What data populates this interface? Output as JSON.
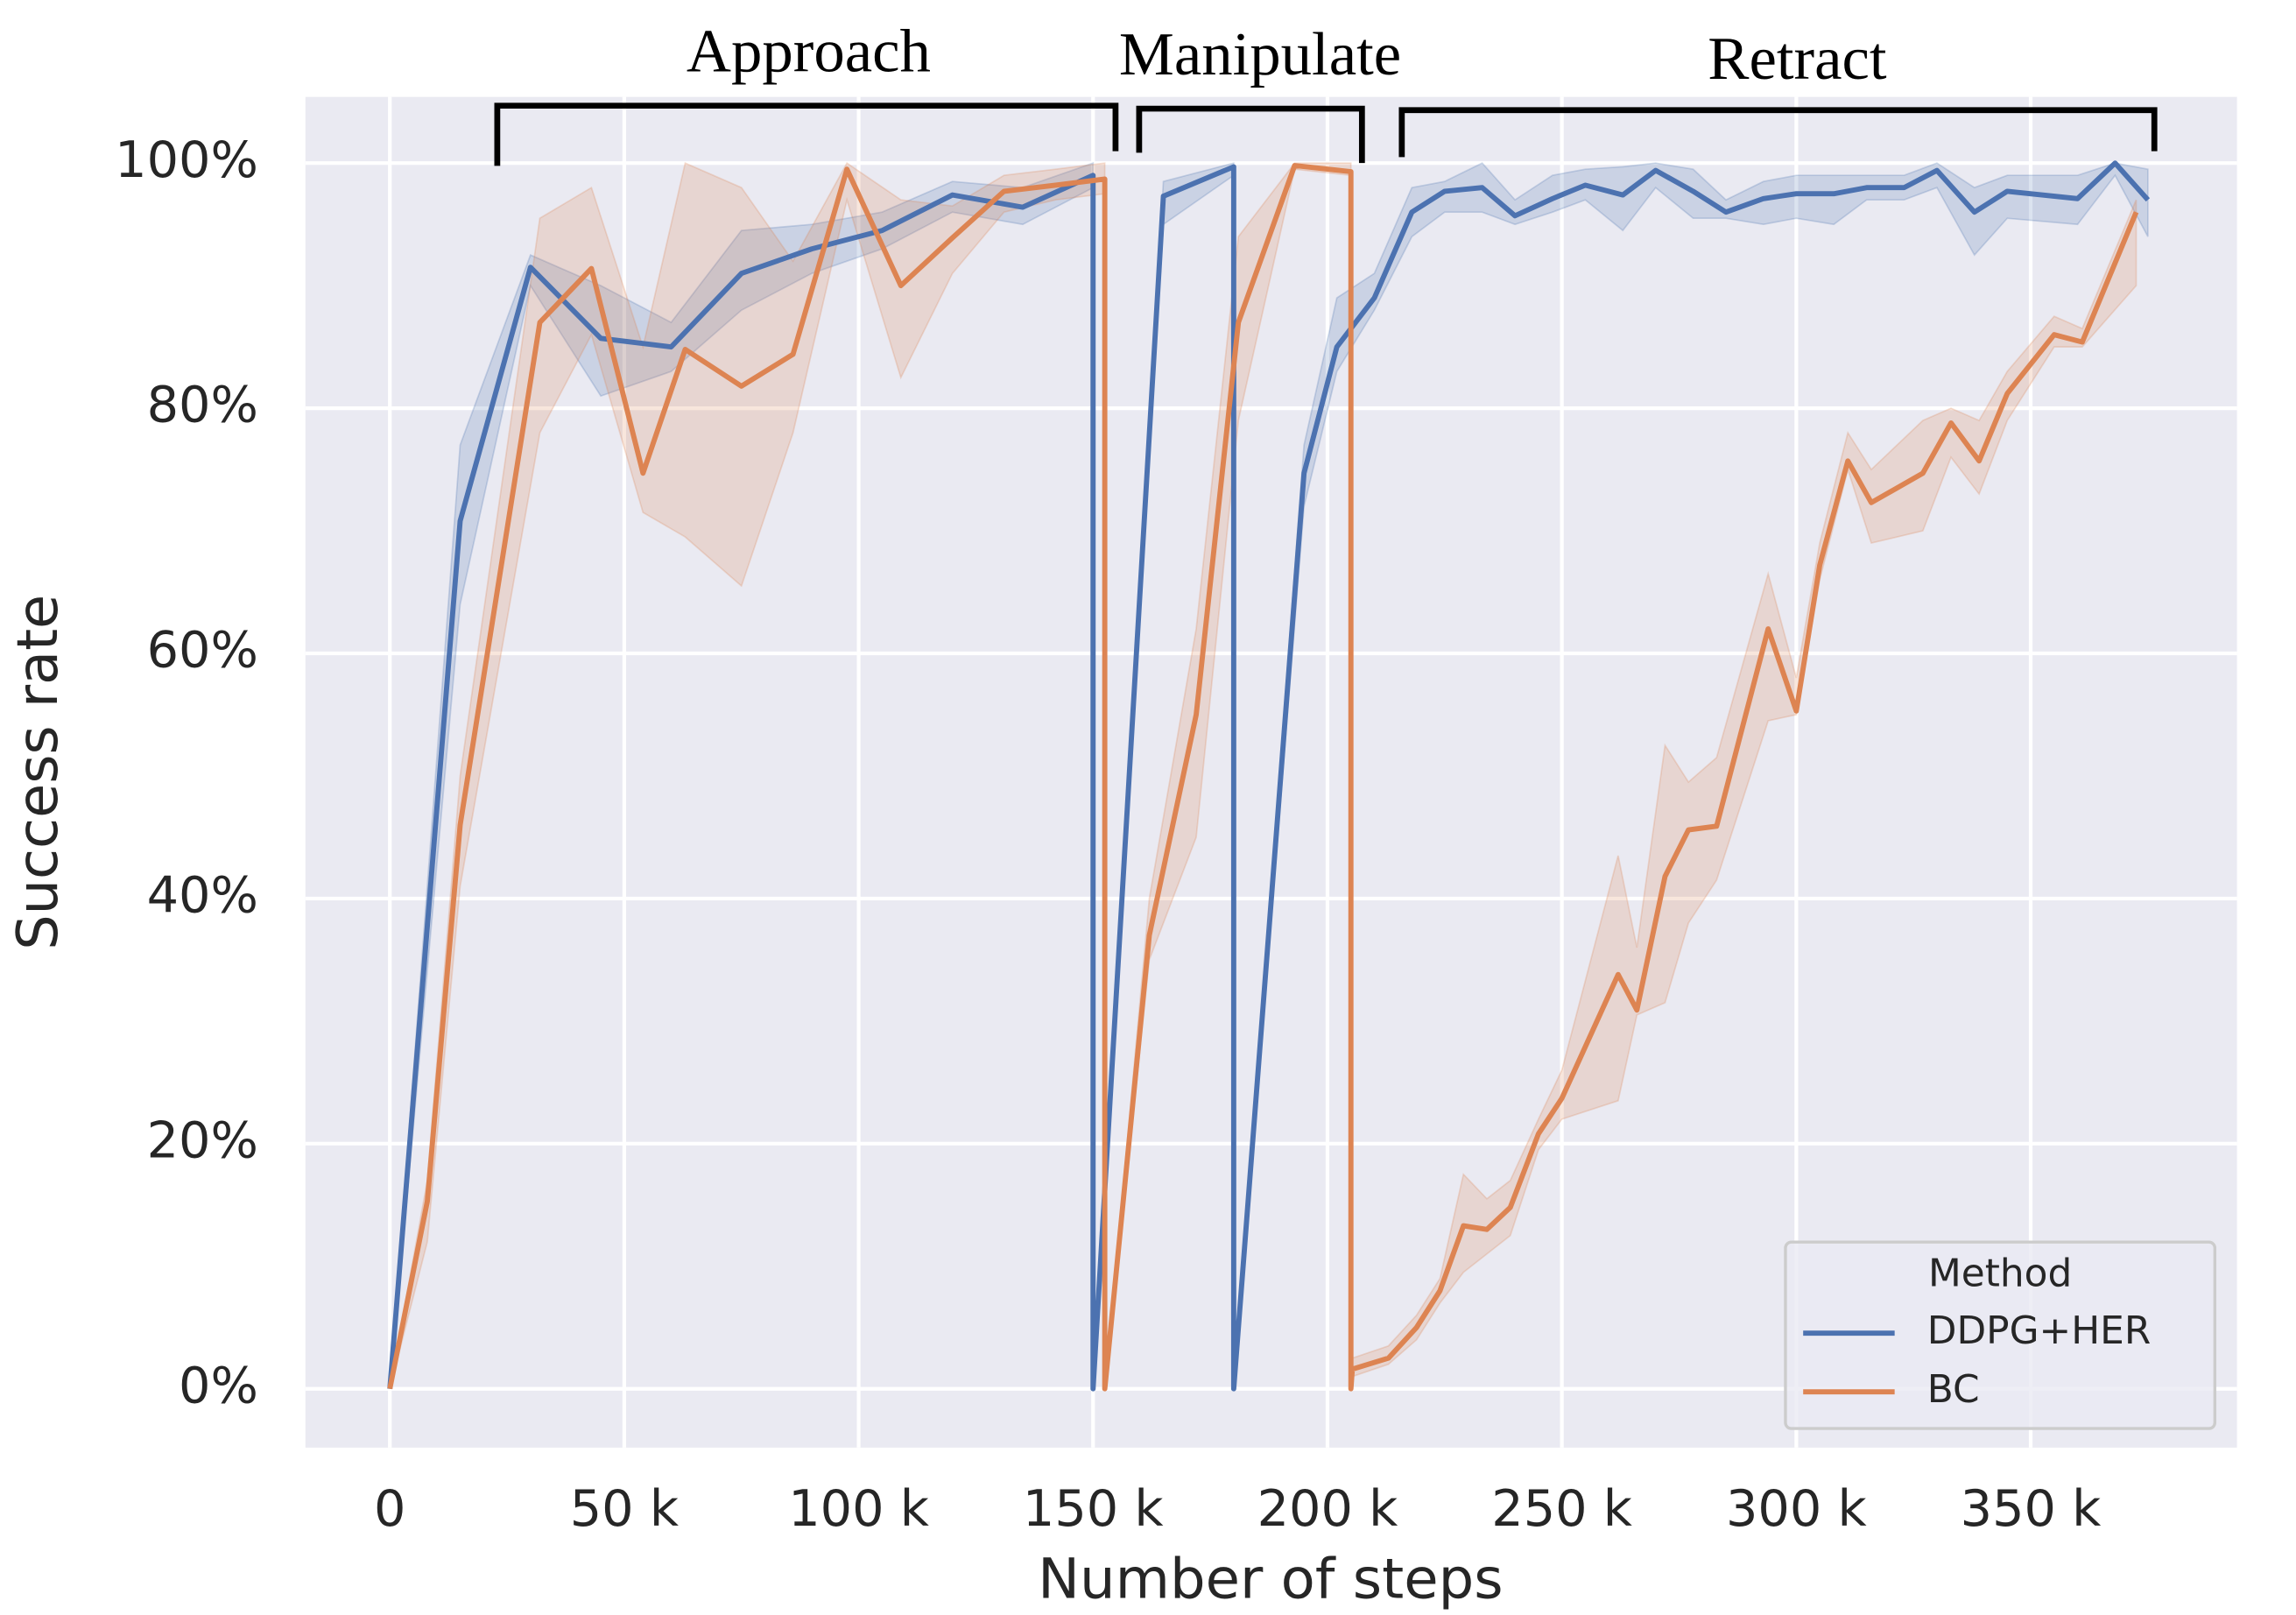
{
  "chart_data": {
    "type": "line",
    "xlabel": "Number of steps",
    "ylabel": "Success rate",
    "annotations": [
      "Approach",
      "Manipulate",
      "Retract"
    ],
    "legend_title": "Method",
    "legend_position": "lower right",
    "grid": true,
    "background": "#eaeaf2",
    "xlim": [
      -18000,
      394000
    ],
    "ylim": [
      -4.8,
      105.4
    ],
    "xticks": [
      0,
      {
        "value": 50000,
        "label": "50 k"
      },
      {
        "value": 100000,
        "label": "100 k"
      },
      {
        "value": 150000,
        "label": "150 k"
      },
      {
        "value": 200000,
        "label": "200 k"
      },
      {
        "value": 250000,
        "label": "250 k"
      },
      {
        "value": 300000,
        "label": "300 k"
      },
      {
        "value": 350000,
        "label": "350 k"
      }
    ],
    "yticks": [
      {
        "value": 0,
        "label": "0%"
      },
      {
        "value": 20,
        "label": "20%"
      },
      {
        "value": 40,
        "label": "40%"
      },
      {
        "value": 60,
        "label": "60%"
      },
      {
        "value": 80,
        "label": "80%"
      },
      {
        "value": 100,
        "label": "100%"
      }
    ],
    "series": [
      {
        "name": "DDPG+HER",
        "color": "#4c72b0",
        "x": [
          0,
          15000,
          30000,
          45000,
          60000,
          75000,
          90000,
          105000,
          120000,
          135000,
          150000,
          150000,
          165000,
          180000,
          180000,
          195000,
          202000,
          210000,
          218000,
          225000,
          233000,
          240000,
          248000,
          255000,
          263000,
          270000,
          278000,
          285000,
          293000,
          300000,
          308000,
          315000,
          323000,
          330000,
          338000,
          345000,
          360000,
          368000,
          375000
        ],
        "values": [
          0,
          70.8,
          91.5,
          85.7,
          85,
          91,
          93,
          94.5,
          97.4,
          96.4,
          99,
          0,
          97.3,
          99.7,
          0,
          74.7,
          85,
          89,
          96,
          97.7,
          98,
          95.7,
          97.1,
          98.2,
          97.4,
          99.4,
          97.7,
          96,
          97.1,
          97.5,
          97.5,
          98,
          98,
          99.4,
          96,
          97.7,
          97.1,
          100,
          97
        ],
        "lower": [
          0,
          64,
          90,
          81,
          83,
          88,
          91,
          93,
          96,
          95,
          98,
          0,
          95,
          99,
          0,
          72,
          83,
          88,
          94,
          96,
          96,
          95,
          96,
          97,
          94.5,
          98,
          95.5,
          95.5,
          95,
          95.5,
          95,
          97,
          97,
          98,
          92.5,
          95.5,
          95,
          99,
          94
        ],
        "upper": [
          0,
          77,
          92.5,
          90,
          87,
          94.5,
          95,
          96,
          98.5,
          98,
          100,
          0,
          98.5,
          100,
          0,
          77,
          89,
          91,
          98,
          98.5,
          100,
          97,
          99,
          99.5,
          99.7,
          100,
          99.5,
          97,
          98.5,
          99,
          99,
          99,
          99,
          100,
          98,
          99,
          99,
          100,
          99.5
        ]
      },
      {
        "name": "BC",
        "color": "#dd8452",
        "x": [
          0,
          8000,
          15000,
          32000,
          43000,
          54000,
          63000,
          75000,
          86000,
          97500,
          109000,
          120000,
          131000,
          142000,
          152500,
          152500,
          162000,
          172000,
          181000,
          193000,
          205000,
          205000,
          205300,
          213000,
          219000,
          224000,
          229000,
          234000,
          239000,
          245000,
          250000,
          262000,
          266000,
          272000,
          277000,
          283000,
          294000,
          300000,
          305000,
          311000,
          316000,
          327000,
          333000,
          339000,
          345000,
          355000,
          361000,
          372500
        ],
        "values": [
          0,
          15.3,
          46,
          87,
          91.4,
          74.7,
          84.8,
          81.8,
          84.4,
          99.5,
          90,
          93.9,
          97.7,
          98.2,
          98.7,
          0,
          37,
          55,
          87,
          99.8,
          99.3,
          0,
          1.6,
          2.5,
          5,
          8,
          13.3,
          13,
          14.8,
          20.8,
          23.7,
          33.8,
          30.9,
          41.8,
          45.6,
          45.9,
          62,
          55.3,
          67.2,
          75.7,
          72.3,
          74.7,
          78.8,
          75.7,
          81.2,
          86,
          85.4,
          96
        ],
        "lower": [
          0,
          12,
          41,
          78,
          86,
          71.5,
          69.5,
          65.5,
          78,
          97,
          82.5,
          91,
          96,
          97,
          97.5,
          0,
          35,
          45,
          79,
          99.5,
          99,
          0,
          1,
          2,
          4,
          7,
          9.5,
          11,
          12.5,
          19.5,
          22,
          23.5,
          30.5,
          31.5,
          38,
          41.5,
          54.5,
          55,
          66,
          75,
          69,
          70,
          76,
          73,
          79,
          85,
          85,
          90
        ],
        "upper": [
          0,
          17,
          50,
          95.5,
          98,
          85,
          100,
          98,
          92,
          100,
          97,
          96.5,
          99,
          99.5,
          100,
          0,
          40,
          62,
          94,
          100,
          100,
          0,
          2.5,
          3.5,
          6,
          9,
          17.5,
          15.5,
          17,
          22,
          26,
          43.5,
          36,
          52.5,
          49.5,
          51.5,
          66.5,
          58,
          69,
          78,
          75,
          79,
          80,
          79,
          83,
          87.5,
          86.5,
          97
        ]
      }
    ]
  }
}
